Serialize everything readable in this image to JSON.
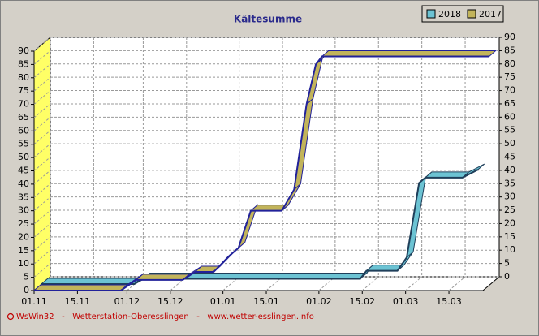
{
  "chart_data": {
    "type": "line",
    "title": "Kältesumme",
    "series": [
      {
        "name": "2018",
        "color": "#6cc3d3",
        "x": [
          0,
          30,
          33,
          103,
          105,
          115,
          118,
          122,
          124,
          136,
          141
        ],
        "values": [
          0,
          0,
          2,
          2,
          5,
          5,
          10,
          38,
          40,
          40,
          43
        ]
      },
      {
        "name": "2017",
        "color": "#c2b45a",
        "x": [
          0,
          28,
          33,
          48,
          52,
          58,
          63,
          66,
          70,
          80,
          84,
          88,
          91,
          93,
          147
        ],
        "values": [
          0,
          0,
          4,
          4,
          7,
          7,
          13,
          16,
          30,
          30,
          38,
          70,
          85,
          88,
          88
        ]
      }
    ],
    "xlim": [
      0,
      145
    ],
    "xticks": [
      {
        "value": 0,
        "label": "01.11"
      },
      {
        "value": 14,
        "label": "15.11"
      },
      {
        "value": 30,
        "label": "01.12"
      },
      {
        "value": 44,
        "label": "15.12"
      },
      {
        "value": 61,
        "label": "01.01"
      },
      {
        "value": 75,
        "label": "15.01"
      },
      {
        "value": 92,
        "label": "01.02"
      },
      {
        "value": 106,
        "label": "15.02"
      },
      {
        "value": 120,
        "label": "01.03"
      },
      {
        "value": 134,
        "label": "15.03"
      }
    ],
    "ylim": [
      0,
      90
    ],
    "yticks": [
      0,
      5,
      10,
      15,
      20,
      25,
      30,
      35,
      40,
      45,
      50,
      55,
      60,
      65,
      70,
      75,
      80,
      85,
      90
    ],
    "grid": true,
    "legend": "top-right",
    "source": "WsWin32   -   Wetterstation-Oberesslingen   -   www.wetter-esslingen.info"
  }
}
